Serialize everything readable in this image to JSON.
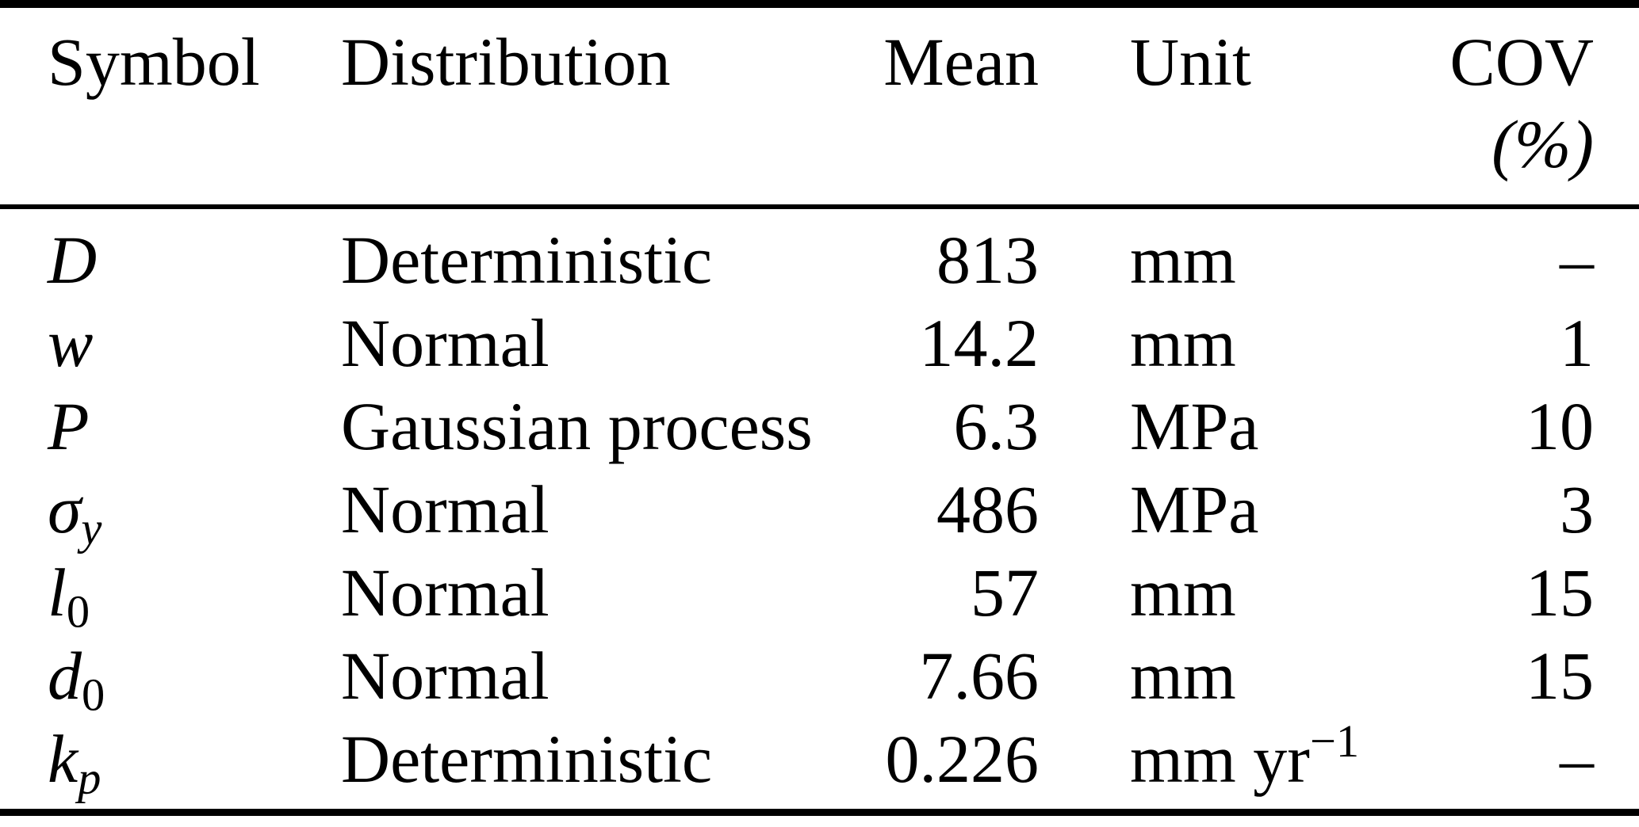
{
  "table": {
    "columns": [
      {
        "label": "Symbol",
        "sublabel": ""
      },
      {
        "label": "Distribution",
        "sublabel": ""
      },
      {
        "label": "Mean",
        "sublabel": ""
      },
      {
        "label": "Unit",
        "sublabel": ""
      },
      {
        "label": "COV",
        "sublabel": "(%)"
      }
    ],
    "rows": [
      {
        "symbol_main": "D",
        "symbol_sub": "",
        "distribution": "Deterministic",
        "mean": "813",
        "unit_main": "mm",
        "unit_sup": "",
        "cov": "–"
      },
      {
        "symbol_main": "w",
        "symbol_sub": "",
        "distribution": "Normal",
        "mean": "14.2",
        "unit_main": "mm",
        "unit_sup": "",
        "cov": "1"
      },
      {
        "symbol_main": "P",
        "symbol_sub": "",
        "distribution": "Gaussian process",
        "mean": "6.3",
        "unit_main": "MPa",
        "unit_sup": "",
        "cov": "10"
      },
      {
        "symbol_main": "σ",
        "symbol_sub": "y",
        "distribution": "Normal",
        "mean": "486",
        "unit_main": "MPa",
        "unit_sup": "",
        "cov": "3"
      },
      {
        "symbol_main": "l",
        "symbol_sub": "0",
        "distribution": "Normal",
        "mean": "57",
        "unit_main": "mm",
        "unit_sup": "",
        "cov": "15"
      },
      {
        "symbol_main": "d",
        "symbol_sub": "0",
        "distribution": "Normal",
        "mean": "7.66",
        "unit_main": "mm",
        "unit_sup": "",
        "cov": "15"
      },
      {
        "symbol_main": "k",
        "symbol_sub": "p",
        "distribution": "Deterministic",
        "mean": "0.226",
        "unit_main": "mm yr",
        "unit_sup": "−1",
        "cov": "–"
      }
    ]
  }
}
